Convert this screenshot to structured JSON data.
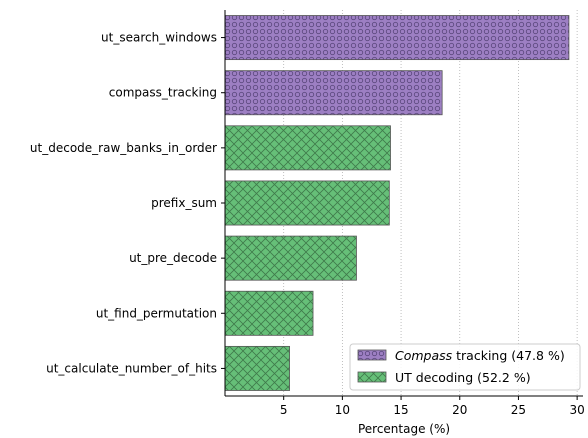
{
  "chart_data": {
    "type": "bar",
    "orientation": "horizontal",
    "categories": [
      "ut_search_windows",
      "compass_tracking",
      "ut_decode_raw_banks_in_order",
      "prefix_sum",
      "ut_pre_decode",
      "ut_find_permutation",
      "ut_calculate_number_of_hits"
    ],
    "values": [
      29.3,
      18.5,
      14.1,
      14.0,
      11.2,
      7.5,
      5.5
    ],
    "groups": [
      "compass",
      "compass",
      "ut",
      "ut",
      "ut",
      "ut",
      "ut"
    ],
    "xlabel": "Percentage (%)",
    "ylabel": "",
    "xlim": [
      0,
      30.5
    ],
    "xticks": [
      5,
      10,
      15,
      20,
      25,
      30
    ],
    "grid": "x-dotted",
    "legend_position": "lower-right",
    "legend": [
      {
        "key": "compass",
        "italic_part": "Compass",
        "rest": " tracking (47.8 %)",
        "color": "#9d7fc3",
        "hatch": "circles"
      },
      {
        "key": "ut",
        "italic_part": "",
        "rest": "UT decoding (52.2 %)",
        "color": "#66bf78",
        "hatch": "crosshatch"
      }
    ]
  }
}
